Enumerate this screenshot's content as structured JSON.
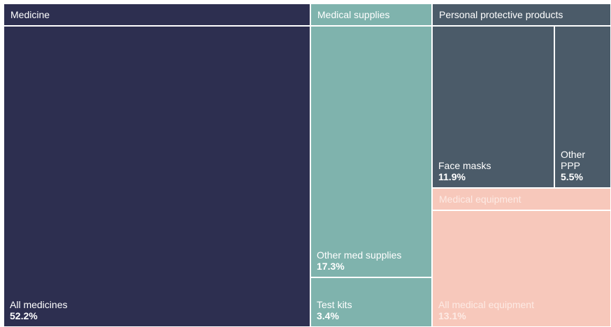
{
  "chart_data": {
    "type": "treemap",
    "groups": [
      {
        "name": "Medicine",
        "color": "#2d2f50",
        "label_color": "#ffffff",
        "children": [
          {
            "name": "All medicines",
            "value": 52.2,
            "value_label": "52.2%"
          }
        ]
      },
      {
        "name": "Medical supplies",
        "color": "#7fb3ad",
        "label_color": "#ffffff",
        "children": [
          {
            "name": "Other med supplies",
            "value": 17.3,
            "value_label": "17.3%"
          },
          {
            "name": "Test kits",
            "value": 3.4,
            "value_label": "3.4%"
          }
        ]
      },
      {
        "name": "Personal protective products",
        "color": "#4b5b69",
        "label_color": "#ffffff",
        "children": [
          {
            "name": "Face masks",
            "value": 11.9,
            "value_label": "11.9%"
          },
          {
            "name": "Other PPP",
            "value": 5.5,
            "value_label": "5.5%"
          }
        ]
      },
      {
        "name": "Medical equipment",
        "color": "#f7c8bb",
        "label_color": "#fdeae4",
        "children": [
          {
            "name": "All medical equipment",
            "value": 13.1,
            "value_label": "13.1%"
          }
        ]
      }
    ]
  }
}
